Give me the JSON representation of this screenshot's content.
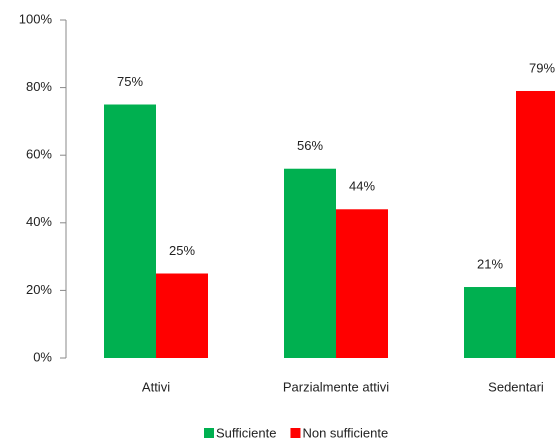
{
  "chart_data": {
    "type": "bar",
    "categories": [
      "Attivi",
      "Parzialmente attivi",
      "Sedentari"
    ],
    "series": [
      {
        "name": "Sufficiente",
        "color": "#00b050",
        "values": [
          75,
          56,
          21
        ],
        "value_labels": [
          "75%",
          "56%",
          "21%"
        ]
      },
      {
        "name": "Non sufficiente",
        "color": "#ff0000",
        "values": [
          25,
          44,
          79
        ],
        "value_labels": [
          "25%",
          "44%",
          "79%"
        ]
      }
    ],
    "ylim": [
      0,
      100
    ],
    "yticks": [
      {
        "value": 0,
        "label": "0%"
      },
      {
        "value": 20,
        "label": "20%"
      },
      {
        "value": 40,
        "label": "40%"
      },
      {
        "value": 60,
        "label": "60%"
      },
      {
        "value": 80,
        "label": "80%"
      },
      {
        "value": 100,
        "label": "100%"
      }
    ],
    "legend": "bottom"
  }
}
